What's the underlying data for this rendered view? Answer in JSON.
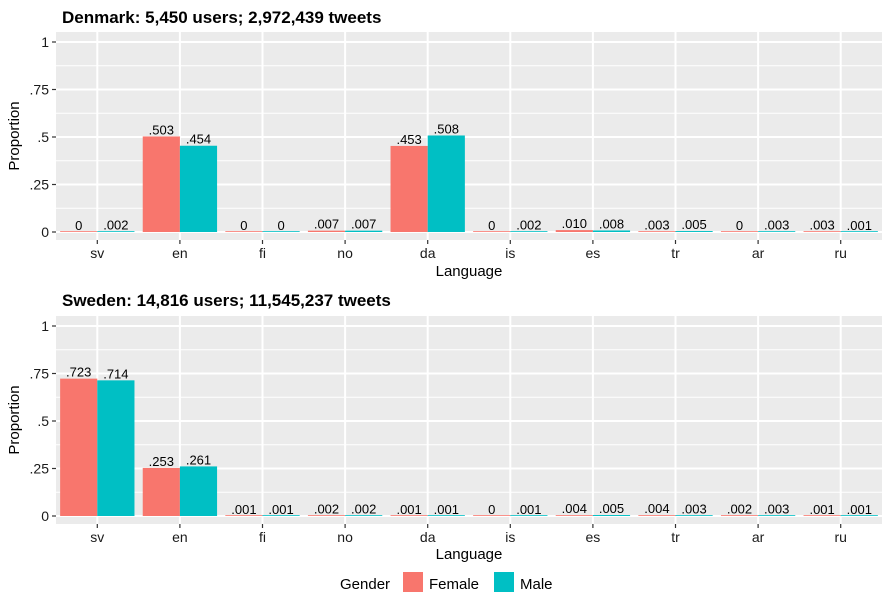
{
  "chart_data": [
    {
      "type": "bar",
      "title": "Denmark: 5,450 users; 2,972,439 tweets",
      "xlabel": "Language",
      "ylabel": "Proportion",
      "ylim": [
        0,
        1.05
      ],
      "yticks": [
        0,
        0.25,
        0.5,
        0.75,
        1
      ],
      "ytick_labels": [
        "0",
        ".25",
        ".5",
        ".75",
        "1"
      ],
      "categories": [
        "sv",
        "en",
        "fi",
        "no",
        "da",
        "is",
        "es",
        "tr",
        "ar",
        "ru"
      ],
      "series": [
        {
          "name": "Female",
          "values": [
            0,
            0.503,
            0,
            0.007,
            0.453,
            0,
            0.01,
            0.003,
            0,
            0.003
          ],
          "labels": [
            "0",
            ".503",
            "0",
            ".007",
            ".453",
            "0",
            ".010",
            ".003",
            "0",
            ".003"
          ]
        },
        {
          "name": "Male",
          "values": [
            0.002,
            0.454,
            0,
            0.007,
            0.508,
            0.002,
            0.008,
            0.005,
            0.003,
            0.001
          ],
          "labels": [
            ".002",
            ".454",
            "0",
            ".007",
            ".508",
            ".002",
            ".008",
            ".005",
            ".003",
            ".001"
          ]
        }
      ],
      "grid": true
    },
    {
      "type": "bar",
      "title": "Sweden: 14,816 users; 11,545,237 tweets",
      "xlabel": "Language",
      "ylabel": "Proportion",
      "ylim": [
        0,
        1.05
      ],
      "yticks": [
        0,
        0.25,
        0.5,
        0.75,
        1
      ],
      "ytick_labels": [
        "0",
        ".25",
        ".5",
        ".75",
        "1"
      ],
      "categories": [
        "sv",
        "en",
        "fi",
        "no",
        "da",
        "is",
        "es",
        "tr",
        "ar",
        "ru"
      ],
      "series": [
        {
          "name": "Female",
          "values": [
            0.723,
            0.253,
            0.001,
            0.002,
            0.001,
            0,
            0.004,
            0.004,
            0.002,
            0.001
          ],
          "labels": [
            ".723",
            ".253",
            ".001",
            ".002",
            ".001",
            "0",
            ".004",
            ".004",
            ".002",
            ".001"
          ]
        },
        {
          "name": "Male",
          "values": [
            0.714,
            0.261,
            0.001,
            0.002,
            0.001,
            0.001,
            0.005,
            0.003,
            0.003,
            0.001
          ],
          "labels": [
            ".714",
            ".261",
            ".001",
            ".002",
            ".001",
            ".001",
            ".005",
            ".003",
            ".003",
            ".001"
          ]
        }
      ],
      "grid": true
    }
  ],
  "legend": {
    "title": "Gender",
    "placement": "bottom",
    "entries": [
      {
        "label": "Female",
        "color": "#F8766D"
      },
      {
        "label": "Male",
        "color": "#00BFC4"
      }
    ]
  },
  "colors": {
    "panel_background": "#EBEBEB",
    "grid": "#FFFFFF",
    "female": "#F8766D",
    "male": "#00BFC4"
  }
}
